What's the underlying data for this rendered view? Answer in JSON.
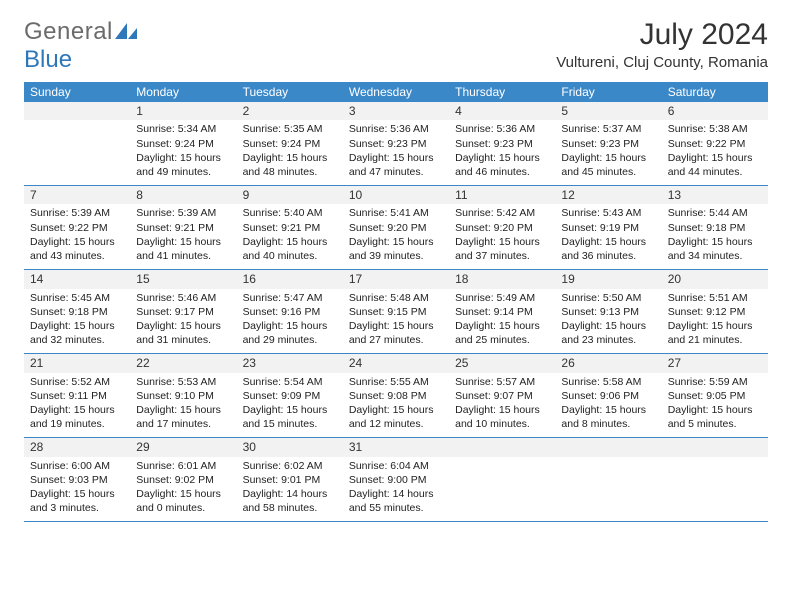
{
  "logo": {
    "general": "General",
    "blue": "Blue"
  },
  "title": "July 2024",
  "location": "Vultureni, Cluj County, Romania",
  "weekdays": [
    "Sunday",
    "Monday",
    "Tuesday",
    "Wednesday",
    "Thursday",
    "Friday",
    "Saturday"
  ],
  "colors": {
    "header_bg": "#3b88c9",
    "header_text": "#ffffff",
    "daynum_bg": "#f2f2f2",
    "border": "#3b88c9",
    "logo_gray": "#6b6b6b",
    "logo_blue": "#2e77b8"
  },
  "weeks": [
    [
      null,
      {
        "n": "1",
        "sunrise": "Sunrise: 5:34 AM",
        "sunset": "Sunset: 9:24 PM",
        "daylight": "Daylight: 15 hours and 49 minutes."
      },
      {
        "n": "2",
        "sunrise": "Sunrise: 5:35 AM",
        "sunset": "Sunset: 9:24 PM",
        "daylight": "Daylight: 15 hours and 48 minutes."
      },
      {
        "n": "3",
        "sunrise": "Sunrise: 5:36 AM",
        "sunset": "Sunset: 9:23 PM",
        "daylight": "Daylight: 15 hours and 47 minutes."
      },
      {
        "n": "4",
        "sunrise": "Sunrise: 5:36 AM",
        "sunset": "Sunset: 9:23 PM",
        "daylight": "Daylight: 15 hours and 46 minutes."
      },
      {
        "n": "5",
        "sunrise": "Sunrise: 5:37 AM",
        "sunset": "Sunset: 9:23 PM",
        "daylight": "Daylight: 15 hours and 45 minutes."
      },
      {
        "n": "6",
        "sunrise": "Sunrise: 5:38 AM",
        "sunset": "Sunset: 9:22 PM",
        "daylight": "Daylight: 15 hours and 44 minutes."
      }
    ],
    [
      {
        "n": "7",
        "sunrise": "Sunrise: 5:39 AM",
        "sunset": "Sunset: 9:22 PM",
        "daylight": "Daylight: 15 hours and 43 minutes."
      },
      {
        "n": "8",
        "sunrise": "Sunrise: 5:39 AM",
        "sunset": "Sunset: 9:21 PM",
        "daylight": "Daylight: 15 hours and 41 minutes."
      },
      {
        "n": "9",
        "sunrise": "Sunrise: 5:40 AM",
        "sunset": "Sunset: 9:21 PM",
        "daylight": "Daylight: 15 hours and 40 minutes."
      },
      {
        "n": "10",
        "sunrise": "Sunrise: 5:41 AM",
        "sunset": "Sunset: 9:20 PM",
        "daylight": "Daylight: 15 hours and 39 minutes."
      },
      {
        "n": "11",
        "sunrise": "Sunrise: 5:42 AM",
        "sunset": "Sunset: 9:20 PM",
        "daylight": "Daylight: 15 hours and 37 minutes."
      },
      {
        "n": "12",
        "sunrise": "Sunrise: 5:43 AM",
        "sunset": "Sunset: 9:19 PM",
        "daylight": "Daylight: 15 hours and 36 minutes."
      },
      {
        "n": "13",
        "sunrise": "Sunrise: 5:44 AM",
        "sunset": "Sunset: 9:18 PM",
        "daylight": "Daylight: 15 hours and 34 minutes."
      }
    ],
    [
      {
        "n": "14",
        "sunrise": "Sunrise: 5:45 AM",
        "sunset": "Sunset: 9:18 PM",
        "daylight": "Daylight: 15 hours and 32 minutes."
      },
      {
        "n": "15",
        "sunrise": "Sunrise: 5:46 AM",
        "sunset": "Sunset: 9:17 PM",
        "daylight": "Daylight: 15 hours and 31 minutes."
      },
      {
        "n": "16",
        "sunrise": "Sunrise: 5:47 AM",
        "sunset": "Sunset: 9:16 PM",
        "daylight": "Daylight: 15 hours and 29 minutes."
      },
      {
        "n": "17",
        "sunrise": "Sunrise: 5:48 AM",
        "sunset": "Sunset: 9:15 PM",
        "daylight": "Daylight: 15 hours and 27 minutes."
      },
      {
        "n": "18",
        "sunrise": "Sunrise: 5:49 AM",
        "sunset": "Sunset: 9:14 PM",
        "daylight": "Daylight: 15 hours and 25 minutes."
      },
      {
        "n": "19",
        "sunrise": "Sunrise: 5:50 AM",
        "sunset": "Sunset: 9:13 PM",
        "daylight": "Daylight: 15 hours and 23 minutes."
      },
      {
        "n": "20",
        "sunrise": "Sunrise: 5:51 AM",
        "sunset": "Sunset: 9:12 PM",
        "daylight": "Daylight: 15 hours and 21 minutes."
      }
    ],
    [
      {
        "n": "21",
        "sunrise": "Sunrise: 5:52 AM",
        "sunset": "Sunset: 9:11 PM",
        "daylight": "Daylight: 15 hours and 19 minutes."
      },
      {
        "n": "22",
        "sunrise": "Sunrise: 5:53 AM",
        "sunset": "Sunset: 9:10 PM",
        "daylight": "Daylight: 15 hours and 17 minutes."
      },
      {
        "n": "23",
        "sunrise": "Sunrise: 5:54 AM",
        "sunset": "Sunset: 9:09 PM",
        "daylight": "Daylight: 15 hours and 15 minutes."
      },
      {
        "n": "24",
        "sunrise": "Sunrise: 5:55 AM",
        "sunset": "Sunset: 9:08 PM",
        "daylight": "Daylight: 15 hours and 12 minutes."
      },
      {
        "n": "25",
        "sunrise": "Sunrise: 5:57 AM",
        "sunset": "Sunset: 9:07 PM",
        "daylight": "Daylight: 15 hours and 10 minutes."
      },
      {
        "n": "26",
        "sunrise": "Sunrise: 5:58 AM",
        "sunset": "Sunset: 9:06 PM",
        "daylight": "Daylight: 15 hours and 8 minutes."
      },
      {
        "n": "27",
        "sunrise": "Sunrise: 5:59 AM",
        "sunset": "Sunset: 9:05 PM",
        "daylight": "Daylight: 15 hours and 5 minutes."
      }
    ],
    [
      {
        "n": "28",
        "sunrise": "Sunrise: 6:00 AM",
        "sunset": "Sunset: 9:03 PM",
        "daylight": "Daylight: 15 hours and 3 minutes."
      },
      {
        "n": "29",
        "sunrise": "Sunrise: 6:01 AM",
        "sunset": "Sunset: 9:02 PM",
        "daylight": "Daylight: 15 hours and 0 minutes."
      },
      {
        "n": "30",
        "sunrise": "Sunrise: 6:02 AM",
        "sunset": "Sunset: 9:01 PM",
        "daylight": "Daylight: 14 hours and 58 minutes."
      },
      {
        "n": "31",
        "sunrise": "Sunrise: 6:04 AM",
        "sunset": "Sunset: 9:00 PM",
        "daylight": "Daylight: 14 hours and 55 minutes."
      },
      null,
      null,
      null
    ]
  ]
}
